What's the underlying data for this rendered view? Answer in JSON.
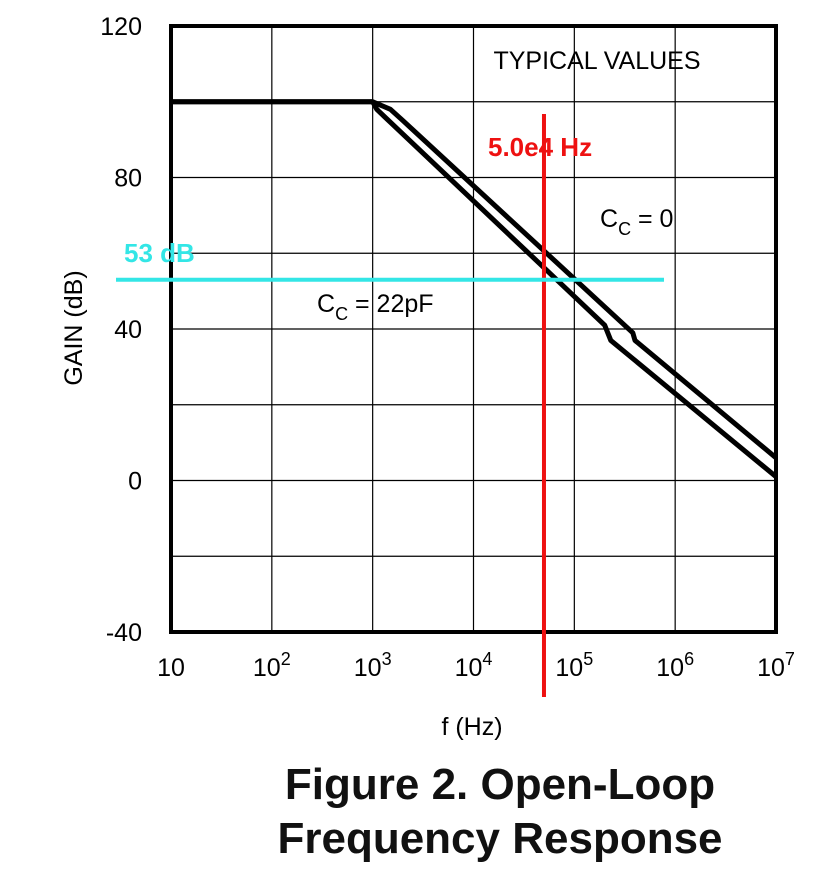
{
  "chart_data": {
    "type": "line",
    "title": "TYPICAL VALUES",
    "xlabel": "f (Hz)",
    "ylabel": "GAIN (dB)",
    "x_scale": "log",
    "xlim": [
      10,
      10000000
    ],
    "ylim": [
      -40,
      120
    ],
    "x_tick_values": [
      10,
      100,
      1000,
      10000,
      100000,
      1000000,
      10000000
    ],
    "x_ticks": [
      {
        "base": "10",
        "exp": ""
      },
      {
        "base": "10",
        "exp": "2"
      },
      {
        "base": "10",
        "exp": "3"
      },
      {
        "base": "10",
        "exp": "4"
      },
      {
        "base": "10",
        "exp": "5"
      },
      {
        "base": "10",
        "exp": "6"
      },
      {
        "base": "10",
        "exp": "7"
      }
    ],
    "y_tick_values": [
      -40,
      0,
      40,
      80,
      120
    ],
    "y_ticks": [
      "-40",
      "0",
      "40",
      "80",
      "120"
    ],
    "grid": true,
    "series": [
      {
        "name_main": "C",
        "name_sub": "C",
        "name_rest": " = 0",
        "x": [
          10,
          1000,
          1500,
          2000,
          380000,
          400000,
          10000000
        ],
        "y": [
          100,
          100,
          98,
          95,
          39,
          37,
          6
        ]
      },
      {
        "name_main": "C",
        "name_sub": "C",
        "name_rest": " = 22pF",
        "x": [
          10,
          1000,
          1100,
          1200,
          200000,
          230000,
          10000000
        ],
        "y": [
          100,
          100,
          98,
          97,
          41,
          37,
          1
        ]
      }
    ],
    "annotations": [
      {
        "text": "5.0e4 Hz",
        "type": "vline",
        "x": 50000,
        "color": "#ee1111"
      },
      {
        "text": "53 dB",
        "type": "hline",
        "y": 53,
        "color": "#33e6e6"
      }
    ]
  },
  "caption": {
    "line1": "Figure 2. Open-Loop",
    "line2": "Frequency Response"
  }
}
